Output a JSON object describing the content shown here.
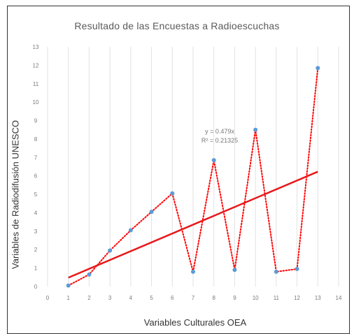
{
  "chart_data": {
    "type": "scatter",
    "title": "Resultado de las Encuestas a Radioescuchas",
    "xlabel": "Variables Culturales OEA",
    "ylabel": "Variables de Radiodifusión UNESCO",
    "xlim": [
      0,
      14
    ],
    "ylim": [
      0,
      13
    ],
    "x_ticks": [
      0,
      1,
      2,
      3,
      4,
      5,
      6,
      7,
      8,
      9,
      10,
      11,
      12,
      13,
      14
    ],
    "y_ticks": [
      0,
      1,
      2,
      3,
      4,
      5,
      6,
      7,
      8,
      9,
      10,
      11,
      12,
      13
    ],
    "grid": "vertical",
    "series": [
      {
        "x": [
          1,
          2,
          3,
          4,
          5,
          6,
          7,
          8,
          9,
          10,
          11,
          12,
          13
        ],
        "y": [
          0.05,
          0.65,
          1.95,
          3.05,
          4.05,
          5.05,
          0.8,
          6.85,
          0.9,
          8.5,
          0.8,
          0.95,
          11.85
        ],
        "marker_color": "#5b9bd5",
        "line_style": "dotted",
        "line_color": "#ff0000"
      }
    ],
    "trendline": {
      "type": "linear",
      "equation": "y = 0.479x",
      "r_squared": "R² = 0.21325",
      "slope": 0.479,
      "color": "#e8181a"
    }
  }
}
